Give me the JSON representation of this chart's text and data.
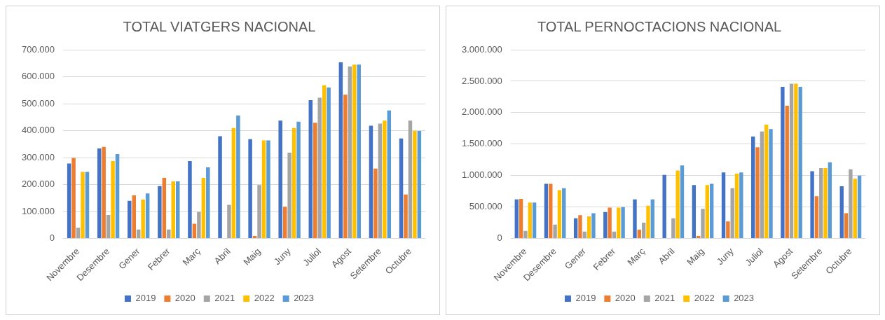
{
  "chart_data": [
    {
      "type": "bar",
      "title": "TOTAL VIATGERS NACIONAL",
      "categories": [
        "Novembre",
        "Desembre",
        "Gener",
        "Febrer",
        "Març",
        "Abril",
        "Maig",
        "Juny",
        "Juliol",
        "Agost",
        "Setembre",
        "Octubre"
      ],
      "series": [
        {
          "name": "2019",
          "color": "#4472c4",
          "values": [
            278000,
            334000,
            140000,
            194000,
            287000,
            379000,
            368000,
            437000,
            513000,
            653000,
            418000,
            371000
          ]
        },
        {
          "name": "2020",
          "color": "#ed7d31",
          "values": [
            299000,
            340000,
            160000,
            225000,
            55000,
            0,
            9000,
            118000,
            429000,
            533000,
            259000,
            163000
          ]
        },
        {
          "name": "2021",
          "color": "#a5a5a5",
          "values": [
            40000,
            87000,
            33000,
            33000,
            98000,
            125000,
            198000,
            318000,
            522000,
            638000,
            426000,
            437000
          ]
        },
        {
          "name": "2022",
          "color": "#ffc000",
          "values": [
            247000,
            287000,
            144000,
            212000,
            225000,
            410000,
            364000,
            410000,
            568000,
            645000,
            437000,
            399000
          ]
        },
        {
          "name": "2023",
          "color": "#5b9bd5",
          "values": [
            247000,
            313000,
            167000,
            212000,
            264000,
            456000,
            364000,
            433000,
            560000,
            645000,
            475000,
            399000
          ]
        }
      ],
      "ylim": [
        0,
        700000
      ],
      "yticks": [
        {
          "value": 0,
          "label": "0"
        },
        {
          "value": 100000,
          "label": "100.000"
        },
        {
          "value": 200000,
          "label": "200.000"
        },
        {
          "value": 300000,
          "label": "300.000"
        },
        {
          "value": 400000,
          "label": "400.000"
        },
        {
          "value": 500000,
          "label": "500.000"
        },
        {
          "value": 600000,
          "label": "600.000"
        },
        {
          "value": 700000,
          "label": "700.000"
        }
      ],
      "grid": "y",
      "legend": "bottom"
    },
    {
      "type": "bar",
      "title": "TOTAL PERNOCTACIONS NACIONAL",
      "categories": [
        "Novembre",
        "Desembre",
        "Gener",
        "Febrer",
        "Març",
        "Abril",
        "Maig",
        "Juny",
        "Juliol",
        "Agost",
        "Setembre",
        "Octubre"
      ],
      "series": [
        {
          "name": "2019",
          "color": "#4472c4",
          "values": [
            620000,
            870000,
            320000,
            420000,
            620000,
            1010000,
            850000,
            1050000,
            1620000,
            2410000,
            1070000,
            830000
          ]
        },
        {
          "name": "2020",
          "color": "#ed7d31",
          "values": [
            630000,
            870000,
            370000,
            490000,
            140000,
            0,
            40000,
            270000,
            1450000,
            2110000,
            670000,
            400000
          ]
        },
        {
          "name": "2021",
          "color": "#a5a5a5",
          "values": [
            120000,
            220000,
            110000,
            110000,
            250000,
            320000,
            470000,
            800000,
            1700000,
            2460000,
            1120000,
            1100000
          ]
        },
        {
          "name": "2022",
          "color": "#ffc000",
          "values": [
            570000,
            770000,
            350000,
            490000,
            520000,
            1080000,
            850000,
            1030000,
            1810000,
            2460000,
            1120000,
            950000
          ]
        },
        {
          "name": "2023",
          "color": "#5b9bd5",
          "values": [
            570000,
            800000,
            400000,
            500000,
            620000,
            1160000,
            870000,
            1050000,
            1740000,
            2410000,
            1210000,
            1000000
          ]
        }
      ],
      "ylim": [
        0,
        3000000
      ],
      "yticks": [
        {
          "value": 0,
          "label": "0"
        },
        {
          "value": 500000,
          "label": "500.000"
        },
        {
          "value": 1000000,
          "label": "1.000.000"
        },
        {
          "value": 1500000,
          "label": "1.500.000"
        },
        {
          "value": 2000000,
          "label": "2.000.000"
        },
        {
          "value": 2500000,
          "label": "2.500.000"
        },
        {
          "value": 3000000,
          "label": "3.000.000"
        }
      ],
      "grid": "y",
      "legend": "bottom"
    }
  ]
}
